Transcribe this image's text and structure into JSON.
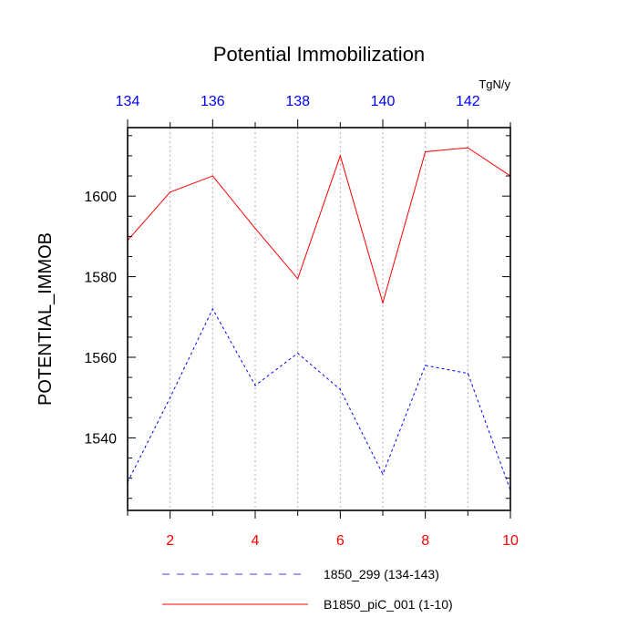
{
  "chart_data": {
    "type": "line",
    "title": "Potential Immobilization",
    "ylabel": "POTENTIAL_IMMOB",
    "units": "TgN/y",
    "ylim": [
      1522,
      1617
    ],
    "y_ticks": [
      1540,
      1560,
      1580,
      1600
    ],
    "x_bottom": {
      "range": [
        1,
        10
      ],
      "ticks": [
        2,
        4,
        6,
        8,
        10
      ],
      "tick_color": "#ff0000"
    },
    "x_top": {
      "range": [
        134,
        143
      ],
      "ticks": [
        134,
        136,
        138,
        140,
        142
      ],
      "tick_color": "#0000ff"
    },
    "grid": "vertical dotted at bottom-axis integer positions",
    "series": [
      {
        "name": "B1850_piC_001 (1-10)",
        "axis": "bottom",
        "color": "#ff0000",
        "style": "solid",
        "x": [
          1,
          2,
          3,
          4,
          5,
          6,
          7,
          8,
          9,
          10
        ],
        "values": [
          1589,
          1601,
          1605,
          1592,
          1579.5,
          1610,
          1573.5,
          1611,
          1612,
          1605
        ]
      },
      {
        "name": "1850_299 (134-143)",
        "axis": "top",
        "color": "#0000ff",
        "style": "dashed",
        "x": [
          134,
          135,
          136,
          137,
          138,
          139,
          140,
          141,
          142,
          143
        ],
        "values": [
          1529,
          1550,
          1572,
          1553,
          1561,
          1552,
          1531,
          1558,
          1556,
          1527
        ]
      }
    ],
    "legend": {
      "placement": "bottom",
      "order": [
        "1850_299 (134-143)",
        "B1850_piC_001 (1-10)"
      ]
    }
  }
}
